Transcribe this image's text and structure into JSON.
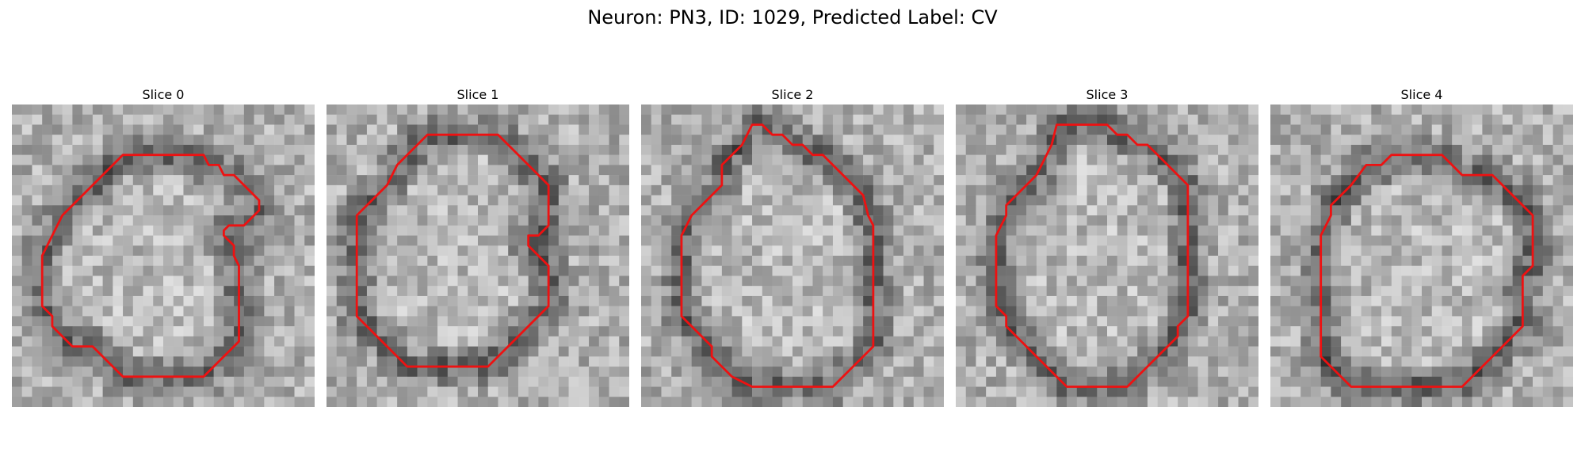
{
  "figure": {
    "title": "Neuron: PN3, ID: 1029, Predicted Label: CV"
  },
  "panels": [
    {
      "title": "Slice 0",
      "seed": 11,
      "contour_color": "#ee1111",
      "contour": [
        [
          15.5,
          5
        ],
        [
          19,
          5
        ],
        [
          19.5,
          6
        ],
        [
          20.5,
          6
        ],
        [
          21,
          7
        ],
        [
          22,
          7
        ],
        [
          24.5,
          9.5
        ],
        [
          24.5,
          10.5
        ],
        [
          23,
          12
        ],
        [
          21.5,
          12
        ],
        [
          21,
          12.5
        ],
        [
          21,
          13
        ],
        [
          22,
          14
        ],
        [
          22,
          15
        ],
        [
          22.5,
          16
        ],
        [
          22.5,
          23.5
        ],
        [
          19,
          27
        ],
        [
          11,
          27
        ],
        [
          9,
          25
        ],
        [
          8,
          24
        ],
        [
          6,
          24
        ],
        [
          4,
          22
        ],
        [
          4,
          21
        ],
        [
          3,
          20
        ],
        [
          3,
          15
        ],
        [
          3.5,
          14
        ],
        [
          4,
          13
        ],
        [
          4.5,
          12
        ],
        [
          5,
          11
        ],
        [
          6,
          10
        ],
        [
          7,
          9
        ],
        [
          8,
          8
        ],
        [
          9,
          7
        ],
        [
          10,
          6
        ],
        [
          11,
          5
        ]
      ]
    },
    {
      "title": "Slice 1",
      "seed": 23,
      "contour_color": "#ee1111",
      "contour": [
        [
          10,
          3
        ],
        [
          17,
          3
        ],
        [
          19,
          5
        ],
        [
          20,
          6
        ],
        [
          21,
          7
        ],
        [
          22,
          8
        ],
        [
          22,
          12
        ],
        [
          21,
          13
        ],
        [
          20,
          13
        ],
        [
          20,
          14
        ],
        [
          22,
          16
        ],
        [
          22,
          20
        ],
        [
          20,
          22
        ],
        [
          18,
          24
        ],
        [
          16,
          26
        ],
        [
          8,
          26
        ],
        [
          5,
          23
        ],
        [
          4,
          22
        ],
        [
          3,
          21
        ],
        [
          3,
          11
        ],
        [
          5,
          9
        ],
        [
          6,
          8
        ],
        [
          7,
          6
        ],
        [
          8,
          5
        ],
        [
          9,
          4
        ]
      ]
    },
    {
      "title": "Slice 2",
      "seed": 37,
      "contour_color": "#ee1111",
      "contour": [
        [
          11,
          2
        ],
        [
          12,
          2
        ],
        [
          13,
          3
        ],
        [
          14,
          3
        ],
        [
          15,
          4
        ],
        [
          16,
          4
        ],
        [
          17,
          5
        ],
        [
          18,
          5
        ],
        [
          19,
          6
        ],
        [
          20,
          7
        ],
        [
          21,
          8
        ],
        [
          22,
          9
        ],
        [
          22.5,
          11
        ],
        [
          23,
          12
        ],
        [
          23,
          24
        ],
        [
          22,
          25
        ],
        [
          21,
          26
        ],
        [
          20,
          27
        ],
        [
          19,
          28
        ],
        [
          11,
          28
        ],
        [
          9,
          27
        ],
        [
          8,
          26
        ],
        [
          7,
          25
        ],
        [
          7,
          24
        ],
        [
          6,
          23
        ],
        [
          5,
          22
        ],
        [
          4,
          21
        ],
        [
          4,
          13
        ],
        [
          5,
          11
        ],
        [
          6,
          10
        ],
        [
          7,
          9
        ],
        [
          8,
          8
        ],
        [
          8,
          6
        ],
        [
          9,
          5
        ],
        [
          10,
          4
        ]
      ]
    },
    {
      "title": "Slice 3",
      "seed": 53,
      "contour_color": "#ee1111",
      "contour": [
        [
          10,
          2
        ],
        [
          15,
          2
        ],
        [
          16,
          3
        ],
        [
          17,
          3
        ],
        [
          18,
          4
        ],
        [
          19,
          4
        ],
        [
          20,
          5
        ],
        [
          21,
          6
        ],
        [
          22,
          7
        ],
        [
          23,
          8
        ],
        [
          23,
          21
        ],
        [
          22,
          22
        ],
        [
          22,
          23
        ],
        [
          21,
          24
        ],
        [
          20,
          25
        ],
        [
          19,
          26
        ],
        [
          18,
          27
        ],
        [
          17,
          28
        ],
        [
          11,
          28
        ],
        [
          8,
          25
        ],
        [
          7,
          24
        ],
        [
          6,
          23
        ],
        [
          5,
          22
        ],
        [
          5,
          21
        ],
        [
          4,
          20
        ],
        [
          4,
          13
        ],
        [
          4.5,
          12
        ],
        [
          5,
          11
        ],
        [
          5,
          10
        ],
        [
          6,
          9
        ],
        [
          7,
          8
        ],
        [
          8,
          7
        ],
        [
          9,
          5
        ],
        [
          9.5,
          4
        ]
      ]
    },
    {
      "title": "Slice 4",
      "seed": 71,
      "contour_color": "#ee1111",
      "contour": [
        [
          9.5,
          6
        ],
        [
          11,
          6
        ],
        [
          12,
          5
        ],
        [
          17,
          5
        ],
        [
          18,
          6
        ],
        [
          19,
          7
        ],
        [
          22,
          7
        ],
        [
          24,
          9
        ],
        [
          25,
          10
        ],
        [
          26,
          11
        ],
        [
          26,
          16
        ],
        [
          25,
          17
        ],
        [
          25,
          22
        ],
        [
          24,
          23
        ],
        [
          23,
          24
        ],
        [
          22,
          25
        ],
        [
          20,
          27
        ],
        [
          19,
          28
        ],
        [
          8,
          28
        ],
        [
          6,
          26
        ],
        [
          5,
          25
        ],
        [
          5,
          13
        ],
        [
          6,
          11
        ],
        [
          6,
          10
        ],
        [
          7,
          9
        ],
        [
          8,
          8
        ]
      ]
    }
  ]
}
